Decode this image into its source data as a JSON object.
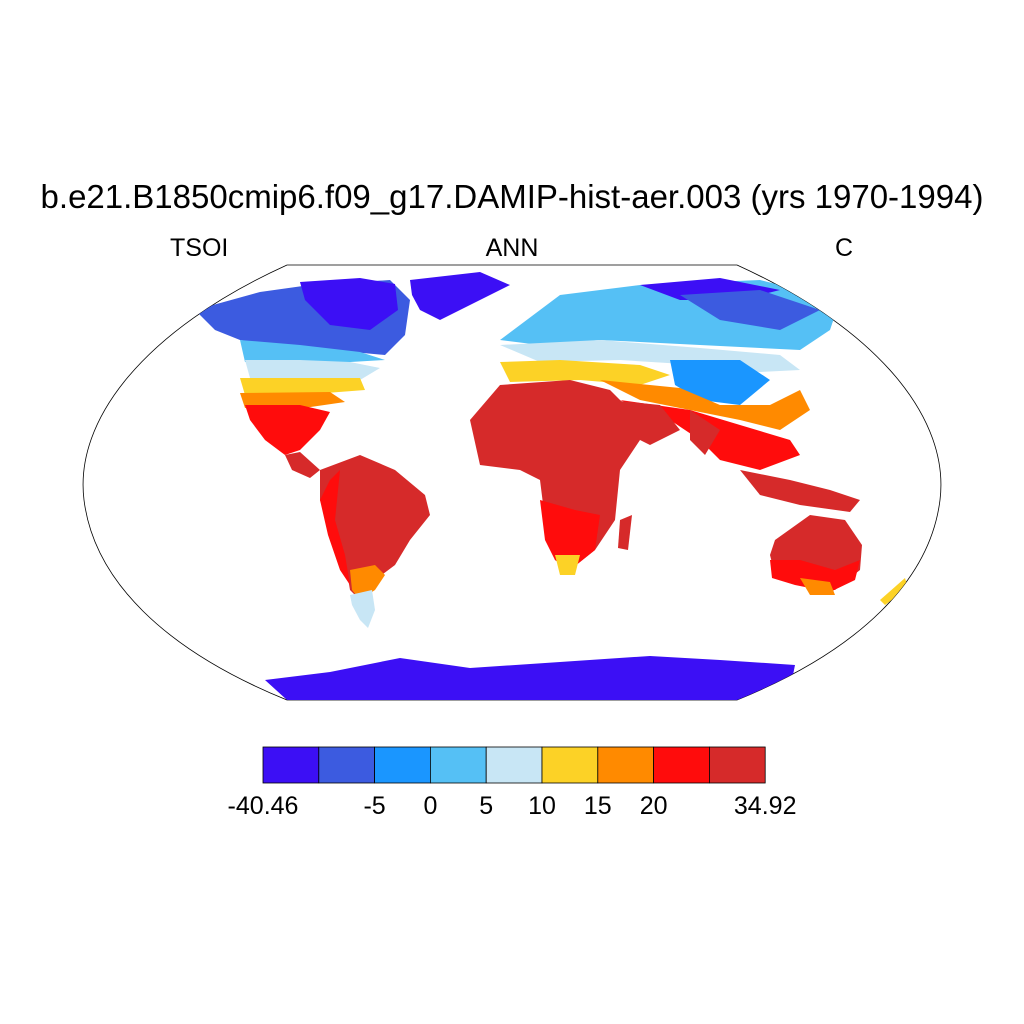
{
  "title": "b.e21.B1850cmip6.f09_g17.DAMIP-hist-aer.003 (yrs 1970-1994)",
  "subtitle_left": "TSOI",
  "subtitle_center": "ANN",
  "subtitle_right": "C",
  "colorbar": {
    "colors": [
      "#3c0ff5",
      "#3c5be0",
      "#1a96ff",
      "#55c0f5",
      "#c8e6f5",
      "#fcd226",
      "#ff8a00",
      "#ff0c0c",
      "#d62a2a"
    ],
    "labels": [
      "-40.46",
      "-5",
      "0",
      "5",
      "10",
      "15",
      "20",
      "34.92"
    ],
    "label_boundary_index": [
      0,
      2,
      3,
      4,
      5,
      6,
      7,
      9
    ]
  }
}
